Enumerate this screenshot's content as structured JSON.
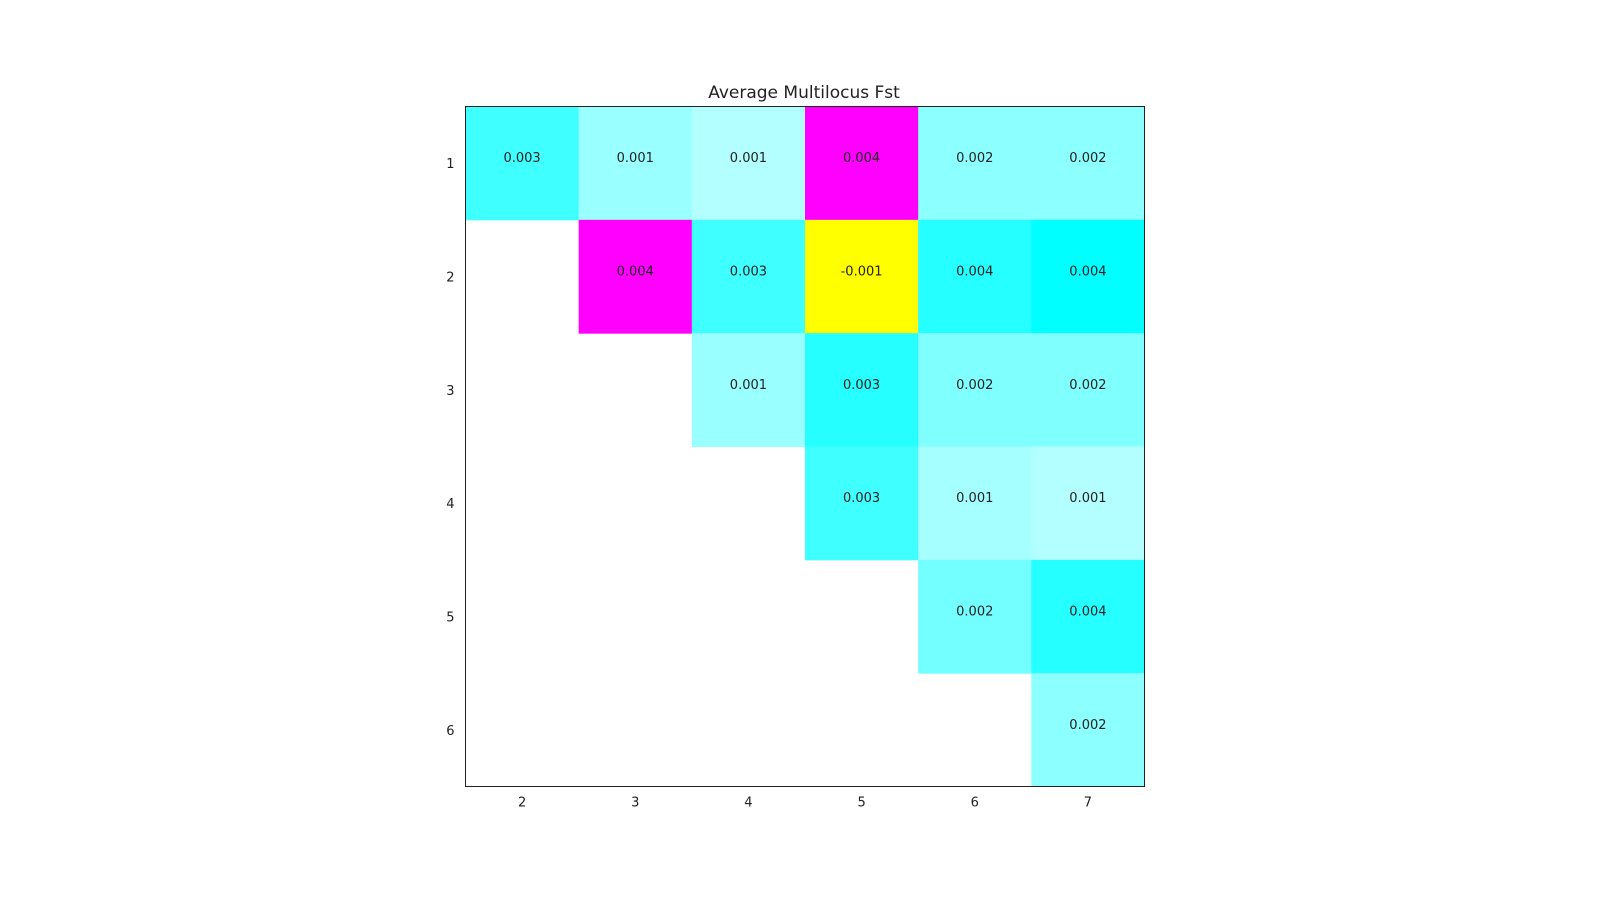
{
  "chart_data": {
    "type": "heatmap",
    "title": "Average Multilocus Fst",
    "x_categories": [
      "2",
      "3",
      "4",
      "5",
      "6",
      "7"
    ],
    "y_categories": [
      "1",
      "2",
      "3",
      "4",
      "5",
      "6"
    ],
    "cells": [
      {
        "row": "1",
        "col": "2",
        "value": "0.003",
        "color": "#40ffff"
      },
      {
        "row": "1",
        "col": "3",
        "value": "0.001",
        "color": "#99ffff"
      },
      {
        "row": "1",
        "col": "4",
        "value": "0.001",
        "color": "#b3ffff"
      },
      {
        "row": "1",
        "col": "5",
        "value": "0.004",
        "color": "#ff00ff"
      },
      {
        "row": "1",
        "col": "6",
        "value": "0.002",
        "color": "#8cffff"
      },
      {
        "row": "1",
        "col": "7",
        "value": "0.002",
        "color": "#8cffff"
      },
      {
        "row": "2",
        "col": "3",
        "value": "0.004",
        "color": "#ff00ff"
      },
      {
        "row": "2",
        "col": "4",
        "value": "0.003",
        "color": "#40ffff"
      },
      {
        "row": "2",
        "col": "5",
        "value": "-0.001",
        "color": "#ffff00"
      },
      {
        "row": "2",
        "col": "6",
        "value": "0.004",
        "color": "#26ffff"
      },
      {
        "row": "2",
        "col": "7",
        "value": "0.004",
        "color": "#00ffff"
      },
      {
        "row": "3",
        "col": "4",
        "value": "0.001",
        "color": "#99ffff"
      },
      {
        "row": "3",
        "col": "5",
        "value": "0.003",
        "color": "#26ffff"
      },
      {
        "row": "3",
        "col": "6",
        "value": "0.002",
        "color": "#80ffff"
      },
      {
        "row": "3",
        "col": "7",
        "value": "0.002",
        "color": "#80ffff"
      },
      {
        "row": "4",
        "col": "5",
        "value": "0.003",
        "color": "#40ffff"
      },
      {
        "row": "4",
        "col": "6",
        "value": "0.001",
        "color": "#a6ffff"
      },
      {
        "row": "4",
        "col": "7",
        "value": "0.001",
        "color": "#b3ffff"
      },
      {
        "row": "5",
        "col": "6",
        "value": "0.002",
        "color": "#73ffff"
      },
      {
        "row": "5",
        "col": "7",
        "value": "0.004",
        "color": "#26ffff"
      },
      {
        "row": "6",
        "col": "7",
        "value": "0.002",
        "color": "#8cffff"
      }
    ]
  }
}
